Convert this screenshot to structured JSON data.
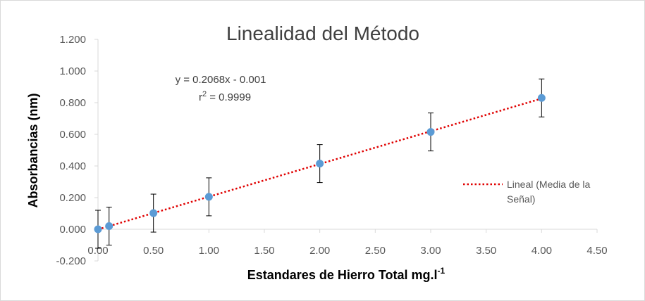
{
  "chart_data": {
    "type": "scatter",
    "title": "Linealidad del Método",
    "xlabel": "Estandares de Hierro Total mg.l",
    "xlabel_sup": "-1",
    "ylabel": "Absorbancias (nm)",
    "xlim": [
      0,
      4.5
    ],
    "ylim": [
      -0.2,
      1.2
    ],
    "x_ticks": [
      "0.00",
      "0.50",
      "1.00",
      "1.50",
      "2.00",
      "2.50",
      "3.00",
      "3.50",
      "4.00",
      "4.50"
    ],
    "y_ticks": [
      "-0.200",
      "0.000",
      "0.200",
      "0.400",
      "0.600",
      "0.800",
      "1.000",
      "1.200"
    ],
    "x_tick_values": [
      0,
      0.5,
      1,
      1.5,
      2,
      2.5,
      3,
      3.5,
      4,
      4.5
    ],
    "y_tick_values": [
      -0.2,
      0,
      0.2,
      0.4,
      0.6,
      0.8,
      1.0,
      1.2
    ],
    "points": {
      "x": [
        0,
        0.1,
        0.5,
        1.0,
        2.0,
        3.0,
        4.0
      ],
      "y": [
        0.0,
        0.02,
        0.102,
        0.205,
        0.415,
        0.615,
        0.83
      ],
      "error": 0.12
    },
    "trendline": {
      "slope": 0.2068,
      "intercept": -0.001,
      "x_range": [
        0,
        4.0
      ],
      "legend_label_line1": "Lineal (Media de la",
      "legend_label_line2": "Señal)"
    },
    "equation": "y = 0.2068x - 0.001",
    "r2_prefix": "r",
    "r2_sup": "2",
    "r2_value": " = 0.9999",
    "legend_position": "right",
    "grid": false,
    "colors": {
      "marker": "#5b9bd5",
      "trendline": "#e00000",
      "axis": "#d9d9d9",
      "errorbar": "#000000"
    }
  }
}
